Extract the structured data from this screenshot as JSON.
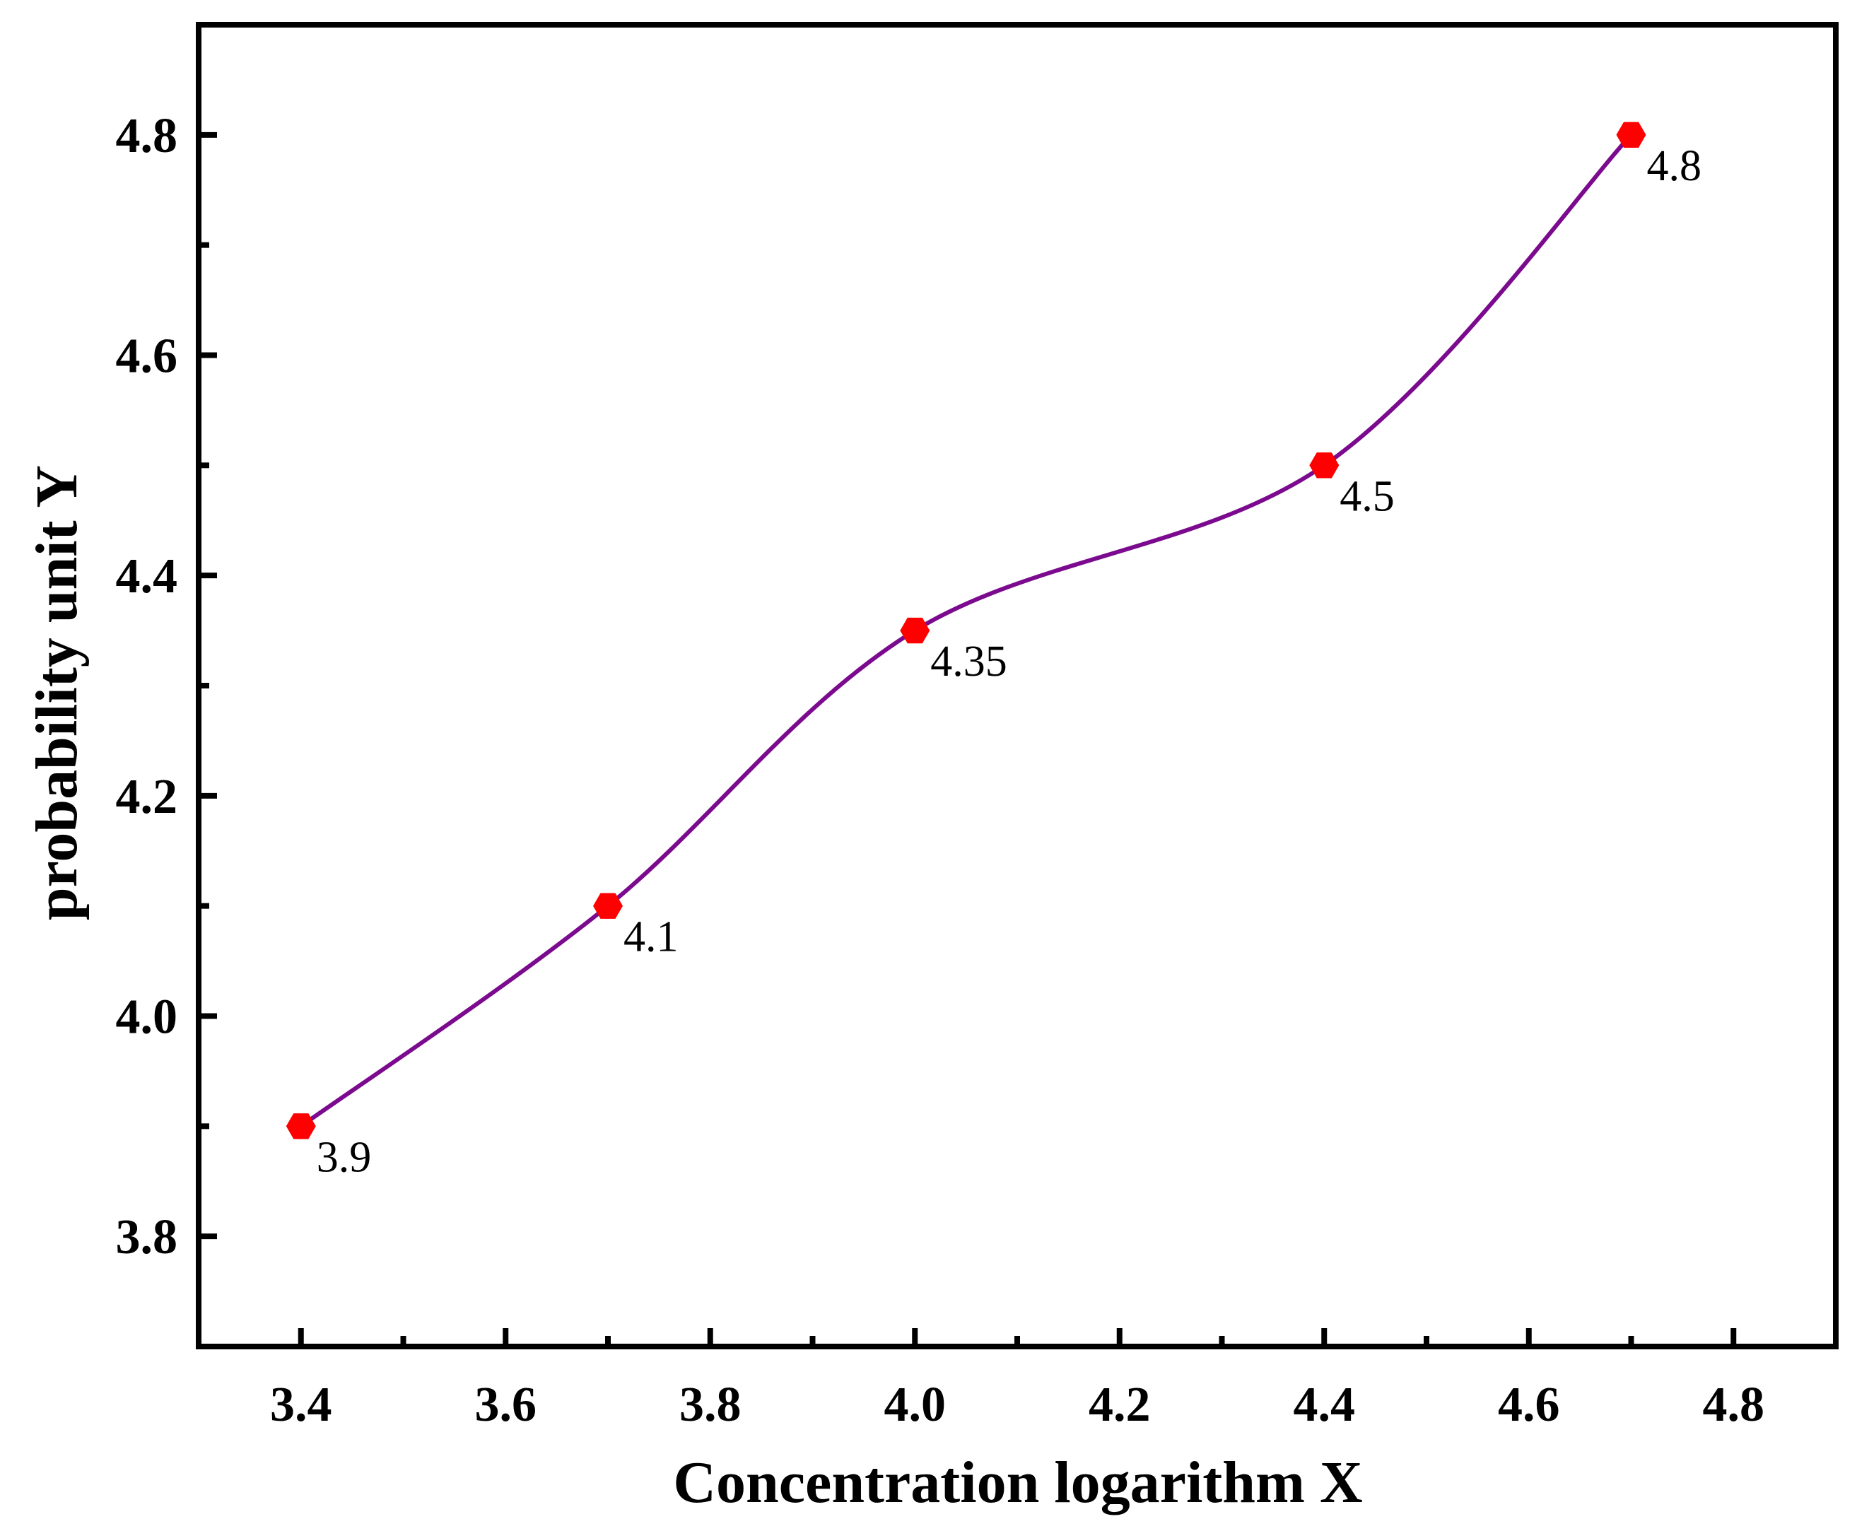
{
  "chart_data": {
    "type": "line",
    "title": "",
    "xlabel": "Concentration logarithm X",
    "ylabel": "probability unit Y",
    "xlim": [
      3.3,
      4.9
    ],
    "ylim": [
      3.7,
      4.9
    ],
    "x_ticks": [
      "3.4",
      "3.6",
      "3.8",
      "4.0",
      "4.2",
      "4.4",
      "4.6",
      "4.8"
    ],
    "y_ticks": [
      "3.8",
      "4.0",
      "4.2",
      "4.4",
      "4.6",
      "4.8"
    ],
    "grid": false,
    "series": [
      {
        "name": "probability unit Y",
        "line_color": "#7B0A8E",
        "marker_color": "#FF0000",
        "marker": "hexagon",
        "smooth": true,
        "x": [
          3.4,
          3.7,
          4.0,
          4.4,
          4.7
        ],
        "y": [
          3.9,
          4.1,
          4.35,
          4.5,
          4.8
        ],
        "labels": [
          "3.9",
          "4.1",
          "4.35",
          "4.5",
          "4.8"
        ]
      }
    ]
  }
}
